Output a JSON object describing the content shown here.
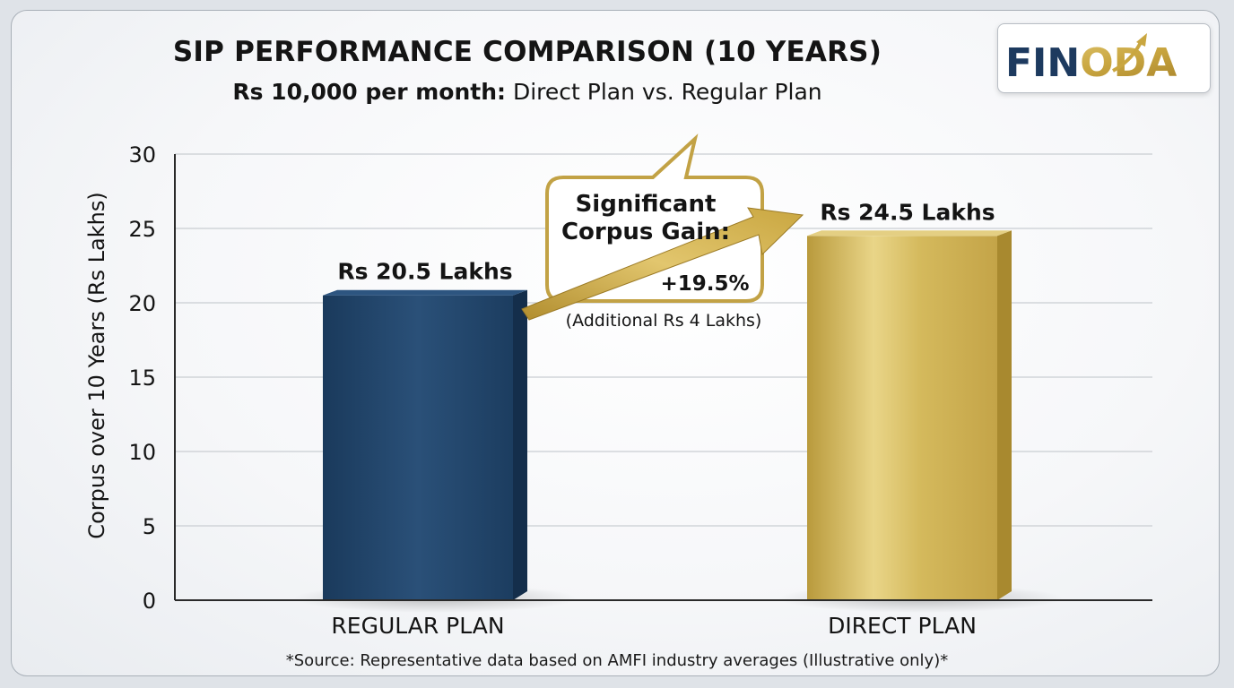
{
  "title": "SIP PERFORMANCE COMPARISON (10 YEARS)",
  "subtitle_bold": "Rs 10,000 per month:",
  "subtitle_rest": " Direct Plan vs. Regular Plan",
  "logo": {
    "text": "FINODA",
    "navy": "#1d3a5f",
    "gold": "#c9a640"
  },
  "footnote": "*Source: Representative data based on AMFI industry averages (Illustrative only)*",
  "callout": {
    "line1": "Significant",
    "line2": "Corpus Gain:",
    "percent": "+19.5%",
    "note": "(Additional Rs 4 Lakhs)"
  },
  "chart_data": {
    "type": "bar",
    "title": "SIP PERFORMANCE COMPARISON (10 YEARS)",
    "ylabel": "Corpus over 10 Years (Rs Lakhs)",
    "xlabel": "",
    "ylim": [
      0,
      30
    ],
    "yticks": [
      0,
      5,
      10,
      15,
      20,
      25,
      30
    ],
    "grid": true,
    "categories": [
      "REGULAR PLAN",
      "DIRECT PLAN"
    ],
    "values": [
      20.5,
      24.5
    ],
    "data_labels": [
      "Rs 20.5 Lakhs",
      "Rs 24.5 Lakhs"
    ],
    "colors": [
      "#1f4468",
      "#cfb14f"
    ]
  }
}
